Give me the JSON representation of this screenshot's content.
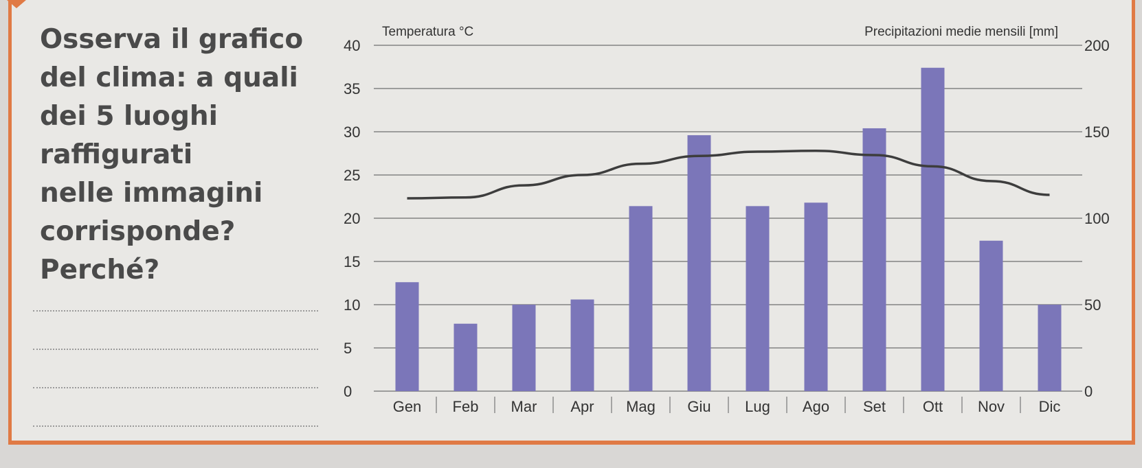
{
  "question": {
    "lines": [
      "Osserva il grafico",
      "del clima: a quali",
      "dei 5 luoghi",
      "raffigurati",
      "nelle immagini",
      "corrisponde?",
      "Perché?"
    ],
    "answer_lines": 4
  },
  "colors": {
    "bar": "#7b76b9",
    "line": "#3d3d3d",
    "accent": "#e07a45"
  },
  "chart_data": {
    "type": "bar",
    "categories": [
      "Gen",
      "Feb",
      "Mar",
      "Apr",
      "Mag",
      "Giu",
      "Lug",
      "Ago",
      "Set",
      "Ott",
      "Nov",
      "Dic"
    ],
    "series": [
      {
        "type": "bar",
        "axis": "right",
        "values": [
          63,
          39,
          50,
          53,
          107,
          148,
          107,
          109,
          152,
          187,
          87,
          50
        ]
      },
      {
        "type": "line",
        "axis": "left",
        "values": [
          22.3,
          22.4,
          23.8,
          25.0,
          26.3,
          27.2,
          27.7,
          27.8,
          27.3,
          26.0,
          24.3,
          22.7
        ]
      }
    ],
    "left_axis": {
      "title": "Temperatura °C",
      "min": 0,
      "max": 40,
      "ticks": [
        "0",
        "5",
        "10",
        "15",
        "20",
        "25",
        "30",
        "35",
        "40"
      ]
    },
    "right_axis": {
      "title": "Precipitazioni medie mensili [mm]",
      "min": 0,
      "max": 200,
      "ticks": [
        "0",
        "50",
        "100",
        "150",
        "200"
      ]
    },
    "grid": true
  }
}
